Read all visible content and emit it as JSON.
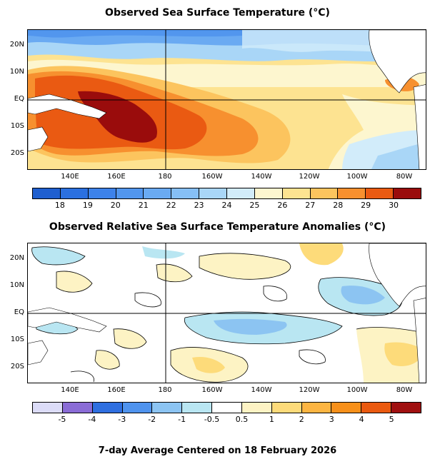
{
  "sst_panel": {
    "title": "Observed Sea Surface Temperature (°C)",
    "lat_labels": [
      "20N",
      "10N",
      "EQ",
      "10S",
      "20S"
    ],
    "lon_labels": [
      "140E",
      "160E",
      "180",
      "160W",
      "140W",
      "120W",
      "100W",
      "80W"
    ],
    "colorbar": {
      "labels": [
        "18",
        "19",
        "20",
        "21",
        "22",
        "23",
        "24",
        "25",
        "26",
        "27",
        "28",
        "29",
        "30"
      ],
      "colors": [
        "#1f5fcf",
        "#2b70e0",
        "#3d82ea",
        "#5296ee",
        "#6aaaf2",
        "#86bff5",
        "#a9d6f7",
        "#d2ecfa",
        "#fdf6cf",
        "#fde391",
        "#fcc45e",
        "#f7902f",
        "#ea5a12",
        "#9a0c0c"
      ]
    }
  },
  "anomaly_panel": {
    "title": "Observed Relative Sea Surface Temperature Anomalies (°C)",
    "lat_labels": [
      "20N",
      "10N",
      "EQ",
      "10S",
      "20S"
    ],
    "lon_labels": [
      "140E",
      "160E",
      "180",
      "160W",
      "140W",
      "120W",
      "100W",
      "80W"
    ],
    "colorbar": {
      "labels": [
        "-5",
        "-4",
        "-3",
        "-2",
        "-1",
        "-0.5",
        "0.5",
        "1",
        "2",
        "3",
        "4",
        "5"
      ],
      "colors": [
        "#dcdcf8",
        "#8a6cd6",
        "#2f6fe0",
        "#4f93ee",
        "#8cc4f2",
        "#b9e6f2",
        "#ffffff",
        "#fdf3c4",
        "#fddb7a",
        "#fcb542",
        "#f7901a",
        "#ea5a10",
        "#a01010"
      ]
    }
  },
  "footer": "7-day Average Centered on 18 February 2026"
}
